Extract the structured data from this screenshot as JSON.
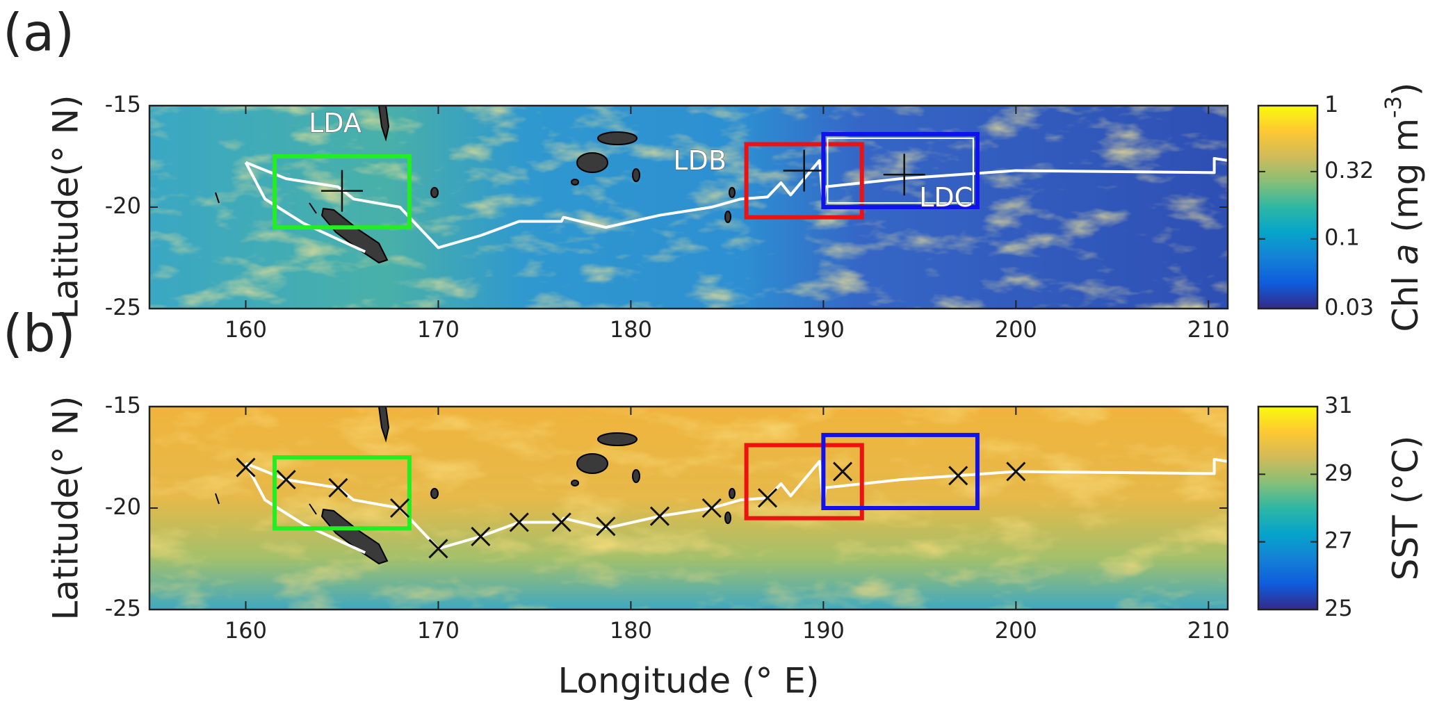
{
  "xlabel": "Longitude (° E)",
  "xlim": [
    155,
    211
  ],
  "xticks": [
    160,
    170,
    180,
    190,
    200,
    210
  ],
  "ylim": [
    -25,
    -15
  ],
  "yticks": [
    -15,
    -20,
    -25
  ],
  "panels": [
    {
      "label": "(a)",
      "ylabel": "Latitude(° N)",
      "field": "chl",
      "colorbar": {
        "label": [
          "Chl ",
          "a",
          " (mg m",
          "-3",
          ")"
        ],
        "scale": "log",
        "lim": [
          0.03,
          1
        ],
        "ticks": [
          0.03,
          0.1,
          0.32,
          1
        ],
        "colormap": [
          "#352a87",
          "#0f5cdd",
          "#1481d6",
          "#06a4ca",
          "#2eb7a4",
          "#87bf77",
          "#d1bb59",
          "#fec832",
          "#f9fb0e"
        ]
      },
      "show_sites": true
    },
    {
      "label": "(b)",
      "ylabel": "Latitude(° N)",
      "field": "sst",
      "colorbar": {
        "label": [
          "SST (°C)"
        ],
        "scale": "linear",
        "lim": [
          25,
          31
        ],
        "ticks": [
          25,
          27,
          29,
          31
        ],
        "colormap": [
          "#352a87",
          "#0f5cdd",
          "#1481d6",
          "#06a4ca",
          "#2eb7a4",
          "#87bf77",
          "#d1bb59",
          "#fec832",
          "#f9fb0e"
        ]
      },
      "show_stations": true
    }
  ],
  "regions": [
    {
      "name": "LDA",
      "color": "#22ee22",
      "lon": [
        161.5,
        168.5
      ],
      "lat": [
        -17.5,
        -21
      ],
      "site": [
        165,
        -19.2
      ]
    },
    {
      "name": "LDB",
      "color": "#ee1111",
      "lon": [
        186,
        192
      ],
      "lat": [
        -16.9,
        -20.5
      ],
      "site": [
        189,
        -18.2
      ]
    },
    {
      "name": "LDC",
      "color": "#1111ee",
      "lon": [
        190,
        198
      ],
      "lat": [
        -16.4,
        -20
      ],
      "site": [
        194.2,
        -18.4
      ]
    }
  ],
  "stations": [
    [
      160,
      -18
    ],
    [
      162.1,
      -18.6
    ],
    [
      164.8,
      -19
    ],
    [
      168,
      -20
    ],
    [
      170,
      -22
    ],
    [
      172.2,
      -21.4
    ],
    [
      174.2,
      -20.7
    ],
    [
      176.4,
      -20.7
    ],
    [
      178.7,
      -20.9
    ],
    [
      181.5,
      -20.4
    ],
    [
      184.2,
      -20
    ],
    [
      187.1,
      -19.5
    ],
    [
      191,
      -18.2
    ],
    [
      197,
      -18.4
    ],
    [
      200,
      -18.2
    ]
  ],
  "track": [
    [
      160,
      -17.8
    ],
    [
      162.1,
      -18.6
    ],
    [
      164.8,
      -19
    ],
    [
      165.6,
      -19.6
    ],
    [
      168,
      -20
    ],
    [
      168.6,
      -20.6
    ],
    [
      170,
      -22
    ],
    [
      172.2,
      -21.4
    ],
    [
      174.2,
      -20.7
    ],
    [
      176.4,
      -20.7
    ],
    [
      176.5,
      -20.5
    ],
    [
      178.7,
      -21
    ],
    [
      181.5,
      -20.4
    ],
    [
      184.2,
      -20
    ],
    [
      185.7,
      -19.6
    ],
    [
      187.1,
      -19.5
    ],
    [
      187.8,
      -18.8
    ],
    [
      188.3,
      -19.4
    ],
    [
      189.8,
      -17.7
    ],
    [
      190,
      -19.9
    ],
    [
      190.1,
      -19
    ],
    [
      194,
      -18.6
    ],
    [
      197,
      -18.4
    ],
    [
      200,
      -18.2
    ],
    [
      210.3,
      -18.3
    ],
    [
      210.3,
      -17.6
    ],
    [
      211,
      -17.7
    ]
  ],
  "track_branch": [
    [
      160,
      -17.8
    ],
    [
      161,
      -19.6
    ],
    [
      163,
      -20.8
    ],
    [
      166.2,
      -22.2
    ]
  ]
}
